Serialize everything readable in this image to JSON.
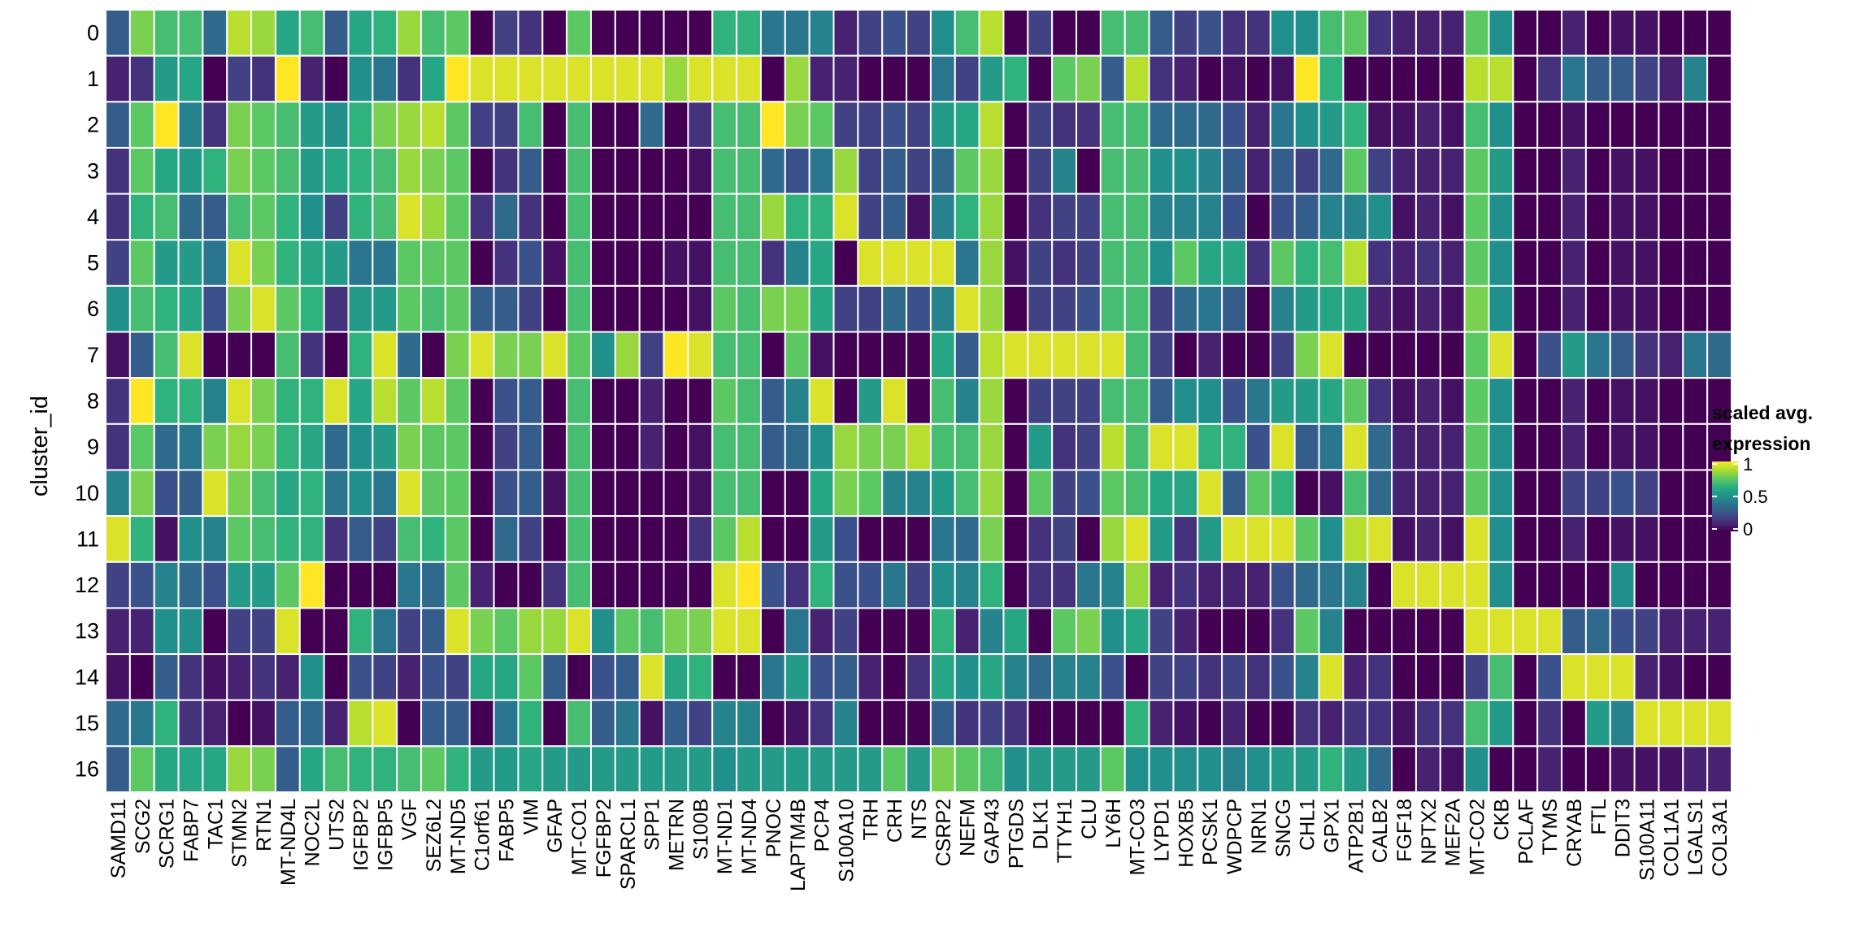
{
  "chart_data": {
    "type": "heatmap",
    "title": "",
    "xlabel": "",
    "ylabel": "cluster_id",
    "rows": [
      "0",
      "1",
      "2",
      "3",
      "4",
      "5",
      "6",
      "7",
      "8",
      "9",
      "10",
      "11",
      "12",
      "13",
      "14",
      "15",
      "16"
    ],
    "columns": [
      "SAMD11",
      "SCG2",
      "SCRG1",
      "FABP7",
      "TAC1",
      "STMN2",
      "RTN1",
      "MT-ND4L",
      "NOC2L",
      "UTS2",
      "IGFBP2",
      "IGFBP5",
      "VGF",
      "SEZ6L2",
      "MT-ND5",
      "C1orf61",
      "FABP5",
      "VIM",
      "GFAP",
      "MT-CO1",
      "FGFBP2",
      "SPARCL1",
      "SPP1",
      "METRN",
      "S100B",
      "MT-ND1",
      "MT-ND4",
      "PNOC",
      "LAPTM4B",
      "PCP4",
      "S100A10",
      "TRH",
      "CRH",
      "NTS",
      "CSRP2",
      "NEFM",
      "GAP43",
      "PTGDS",
      "DLK1",
      "TTYH1",
      "CLU",
      "LY6H",
      "MT-CO3",
      "LYPD1",
      "HOXB5",
      "PCSK1",
      "WDPCP",
      "NRN1",
      "SNCG",
      "CHL1",
      "GPX1",
      "ATP2B1",
      "CALB2",
      "FGF18",
      "NPTX2",
      "MEF2A",
      "MT-CO2",
      "CKB",
      "PCLAF",
      "TYMS",
      "CRYAB",
      "FTL",
      "DDIT3",
      "S100A11",
      "COL1A1",
      "LGALS1",
      "COL3A1"
    ],
    "values": [
      [
        0.3,
        0.8,
        0.7,
        0.7,
        0.35,
        0.9,
        0.85,
        0.6,
        0.7,
        0.3,
        0.6,
        0.65,
        0.85,
        0.7,
        0.75,
        0.0,
        0.2,
        0.15,
        0.0,
        0.75,
        0.0,
        0.0,
        0.0,
        0.0,
        0.0,
        0.65,
        0.65,
        0.4,
        0.4,
        0.45,
        0.1,
        0.2,
        0.25,
        0.2,
        0.5,
        0.7,
        0.9,
        0.0,
        0.2,
        0.0,
        0.0,
        0.7,
        0.7,
        0.3,
        0.2,
        0.25,
        0.15,
        0.15,
        0.5,
        0.5,
        0.7,
        0.75,
        0.15,
        0.1,
        0.1,
        0.1,
        0.75,
        0.5,
        0.0,
        0.0,
        0.1,
        0.0,
        0.05,
        0.05,
        0.0,
        0.0,
        0.0
      ],
      [
        0.1,
        0.15,
        0.55,
        0.6,
        0.0,
        0.2,
        0.15,
        1.0,
        0.1,
        0.0,
        0.5,
        0.4,
        0.15,
        0.6,
        1.0,
        0.95,
        0.95,
        0.95,
        0.95,
        0.95,
        0.95,
        0.95,
        0.95,
        0.85,
        0.95,
        0.95,
        0.95,
        0.0,
        0.85,
        0.1,
        0.1,
        0.0,
        0.0,
        0.0,
        0.4,
        0.2,
        0.55,
        0.65,
        0.0,
        0.75,
        0.8,
        0.3,
        0.9,
        0.15,
        0.1,
        0.0,
        0.05,
        0.0,
        0.05,
        1.0,
        0.65,
        0.0,
        0.0,
        0.0,
        0.0,
        0.0,
        0.9,
        0.9,
        0.0,
        0.15,
        0.4,
        0.3,
        0.3,
        0.2,
        0.1,
        0.45,
        0.0
      ],
      [
        0.3,
        0.75,
        1.0,
        0.45,
        0.15,
        0.8,
        0.75,
        0.7,
        0.55,
        0.5,
        0.65,
        0.8,
        0.85,
        0.9,
        0.75,
        0.2,
        0.2,
        0.7,
        0.0,
        0.7,
        0.0,
        0.0,
        0.35,
        0.0,
        0.15,
        0.7,
        0.7,
        1.0,
        0.8,
        0.75,
        0.2,
        0.2,
        0.25,
        0.2,
        0.55,
        0.6,
        0.9,
        0.0,
        0.2,
        0.15,
        0.15,
        0.7,
        0.7,
        0.35,
        0.35,
        0.35,
        0.25,
        0.1,
        0.4,
        0.5,
        0.55,
        0.65,
        0.05,
        0.05,
        0.1,
        0.05,
        0.7,
        0.5,
        0.0,
        0.0,
        0.05,
        0.0,
        0.0,
        0.0,
        0.0,
        0.0,
        0.0
      ],
      [
        0.15,
        0.75,
        0.6,
        0.55,
        0.65,
        0.8,
        0.75,
        0.7,
        0.55,
        0.6,
        0.65,
        0.7,
        0.85,
        0.8,
        0.75,
        0.0,
        0.15,
        0.3,
        0.0,
        0.7,
        0.0,
        0.0,
        0.0,
        0.0,
        0.05,
        0.7,
        0.7,
        0.35,
        0.25,
        0.4,
        0.85,
        0.2,
        0.3,
        0.2,
        0.35,
        0.75,
        0.85,
        0.0,
        0.2,
        0.45,
        0.0,
        0.7,
        0.7,
        0.5,
        0.5,
        0.45,
        0.3,
        0.1,
        0.3,
        0.2,
        0.35,
        0.75,
        0.2,
        0.1,
        0.1,
        0.1,
        0.75,
        0.55,
        0.0,
        0.0,
        0.1,
        0.0,
        0.05,
        0.05,
        0.0,
        0.0,
        0.0
      ],
      [
        0.15,
        0.65,
        0.7,
        0.35,
        0.3,
        0.7,
        0.75,
        0.65,
        0.5,
        0.2,
        0.65,
        0.7,
        0.95,
        0.85,
        0.75,
        0.15,
        0.35,
        0.15,
        0.0,
        0.7,
        0.0,
        0.0,
        0.0,
        0.0,
        0.0,
        0.7,
        0.7,
        0.85,
        0.65,
        0.65,
        0.95,
        0.2,
        0.3,
        0.05,
        0.45,
        0.65,
        0.85,
        0.0,
        0.15,
        0.2,
        0.2,
        0.7,
        0.7,
        0.45,
        0.45,
        0.45,
        0.25,
        0.0,
        0.25,
        0.3,
        0.45,
        0.45,
        0.5,
        0.05,
        0.1,
        0.05,
        0.75,
        0.5,
        0.0,
        0.0,
        0.1,
        0.0,
        0.05,
        0.05,
        0.0,
        0.0,
        0.0
      ],
      [
        0.2,
        0.75,
        0.55,
        0.55,
        0.4,
        0.95,
        0.8,
        0.65,
        0.6,
        0.55,
        0.4,
        0.4,
        0.75,
        0.75,
        0.75,
        0.0,
        0.15,
        0.25,
        0.05,
        0.7,
        0.0,
        0.0,
        0.0,
        0.05,
        0.05,
        0.7,
        0.7,
        0.15,
        0.45,
        0.6,
        0.0,
        0.95,
        0.95,
        0.95,
        0.95,
        0.4,
        0.85,
        0.05,
        0.2,
        0.15,
        0.2,
        0.7,
        0.7,
        0.5,
        0.75,
        0.6,
        0.6,
        0.15,
        0.75,
        0.65,
        0.7,
        0.9,
        0.15,
        0.1,
        0.15,
        0.1,
        0.75,
        0.5,
        0.0,
        0.0,
        0.1,
        0.0,
        0.05,
        0.05,
        0.0,
        0.0,
        0.0
      ],
      [
        0.5,
        0.7,
        0.65,
        0.6,
        0.25,
        0.8,
        0.95,
        0.75,
        0.65,
        0.15,
        0.55,
        0.55,
        0.75,
        0.7,
        0.75,
        0.3,
        0.3,
        0.2,
        0.0,
        0.7,
        0.0,
        0.0,
        0.0,
        0.0,
        0.05,
        0.75,
        0.7,
        0.8,
        0.8,
        0.6,
        0.2,
        0.2,
        0.35,
        0.25,
        0.45,
        0.95,
        0.85,
        0.0,
        0.2,
        0.2,
        0.25,
        0.7,
        0.7,
        0.2,
        0.35,
        0.4,
        0.3,
        0.0,
        0.45,
        0.55,
        0.6,
        0.6,
        0.1,
        0.05,
        0.1,
        0.05,
        0.8,
        0.5,
        0.0,
        0.0,
        0.1,
        0.0,
        0.05,
        0.05,
        0.0,
        0.0,
        0.0
      ],
      [
        0.05,
        0.3,
        0.7,
        0.95,
        0.0,
        0.0,
        0.0,
        0.7,
        0.15,
        0.0,
        0.65,
        0.95,
        0.35,
        0.0,
        0.8,
        0.95,
        0.8,
        0.8,
        0.95,
        0.75,
        0.5,
        0.85,
        0.2,
        1.0,
        0.95,
        0.7,
        0.7,
        0.0,
        0.75,
        0.05,
        0.0,
        0.0,
        0.0,
        0.0,
        0.6,
        0.3,
        0.9,
        0.95,
        0.95,
        0.95,
        0.95,
        0.95,
        0.7,
        0.2,
        0.0,
        0.1,
        0.0,
        0.0,
        0.2,
        0.8,
        0.95,
        0.0,
        0.0,
        0.0,
        0.0,
        0.0,
        0.75,
        0.95,
        0.0,
        0.25,
        0.55,
        0.4,
        0.3,
        0.15,
        0.1,
        0.4,
        0.35
      ],
      [
        0.15,
        1.0,
        0.65,
        0.65,
        0.45,
        0.95,
        0.8,
        0.65,
        0.65,
        0.95,
        0.6,
        0.9,
        0.75,
        0.9,
        0.75,
        0.0,
        0.25,
        0.3,
        0.0,
        0.7,
        0.0,
        0.0,
        0.1,
        0.0,
        0.0,
        0.75,
        0.7,
        0.3,
        0.45,
        0.95,
        0.0,
        0.55,
        0.95,
        0.0,
        0.7,
        0.45,
        0.85,
        0.0,
        0.2,
        0.2,
        0.2,
        0.7,
        0.7,
        0.3,
        0.5,
        0.5,
        0.25,
        0.4,
        0.55,
        0.55,
        0.6,
        0.75,
        0.15,
        0.05,
        0.1,
        0.05,
        0.75,
        0.5,
        0.0,
        0.0,
        0.1,
        0.0,
        0.05,
        0.05,
        0.0,
        0.0,
        0.0
      ],
      [
        0.15,
        0.75,
        0.35,
        0.4,
        0.8,
        0.85,
        0.8,
        0.65,
        0.6,
        0.35,
        0.5,
        0.55,
        0.8,
        0.75,
        0.75,
        0.0,
        0.2,
        0.3,
        0.0,
        0.7,
        0.0,
        0.0,
        0.1,
        0.0,
        0.05,
        0.7,
        0.7,
        0.3,
        0.35,
        0.5,
        0.85,
        0.8,
        0.8,
        0.9,
        0.7,
        0.7,
        0.85,
        0.0,
        0.55,
        0.15,
        0.2,
        0.9,
        0.7,
        0.95,
        0.95,
        0.65,
        0.65,
        0.25,
        0.95,
        0.3,
        0.4,
        0.95,
        0.35,
        0.1,
        0.1,
        0.1,
        0.75,
        0.5,
        0.0,
        0.0,
        0.1,
        0.0,
        0.05,
        0.05,
        0.0,
        0.0,
        0.0
      ],
      [
        0.45,
        0.8,
        0.25,
        0.3,
        0.95,
        0.8,
        0.7,
        0.6,
        0.65,
        0.4,
        0.5,
        0.4,
        0.95,
        0.75,
        0.75,
        0.0,
        0.25,
        0.3,
        0.05,
        0.7,
        0.0,
        0.0,
        0.0,
        0.0,
        0.05,
        0.7,
        0.7,
        0.0,
        0.0,
        0.6,
        0.8,
        0.75,
        0.45,
        0.45,
        0.55,
        0.7,
        0.85,
        0.0,
        0.75,
        0.2,
        0.25,
        0.75,
        0.7,
        0.6,
        0.6,
        0.95,
        0.3,
        0.75,
        0.65,
        0.0,
        0.05,
        0.7,
        0.35,
        0.1,
        0.1,
        0.1,
        0.75,
        0.5,
        0.0,
        0.0,
        0.2,
        0.2,
        0.25,
        0.2,
        0.0,
        0.0,
        0.0
      ],
      [
        0.95,
        0.65,
        0.05,
        0.5,
        0.45,
        0.75,
        0.7,
        0.65,
        0.65,
        0.15,
        0.3,
        0.2,
        0.7,
        0.65,
        0.75,
        0.0,
        0.35,
        0.2,
        0.0,
        0.7,
        0.0,
        0.0,
        0.0,
        0.0,
        0.15,
        0.75,
        0.9,
        0.0,
        0.0,
        0.55,
        0.25,
        0.0,
        0.0,
        0.0,
        0.4,
        0.35,
        0.8,
        0.0,
        0.15,
        0.2,
        0.0,
        0.85,
        0.95,
        0.55,
        0.15,
        0.55,
        0.95,
        0.95,
        0.95,
        0.75,
        0.5,
        0.9,
        0.95,
        0.05,
        0.1,
        0.05,
        0.95,
        0.5,
        0.0,
        0.0,
        0.1,
        0.0,
        0.05,
        0.05,
        0.0,
        0.0,
        0.0
      ],
      [
        0.2,
        0.25,
        0.45,
        0.35,
        0.25,
        0.55,
        0.55,
        0.75,
        1.0,
        0.0,
        0.0,
        0.0,
        0.4,
        0.35,
        0.75,
        0.1,
        0.0,
        0.0,
        0.15,
        0.7,
        0.0,
        0.0,
        0.0,
        0.0,
        0.0,
        0.95,
        1.0,
        0.25,
        0.15,
        0.65,
        0.25,
        0.25,
        0.4,
        0.2,
        0.5,
        0.45,
        0.65,
        0.0,
        0.15,
        0.15,
        0.4,
        0.45,
        0.85,
        0.1,
        0.15,
        0.1,
        0.1,
        0.1,
        0.25,
        0.35,
        0.4,
        0.45,
        0.0,
        0.95,
        0.95,
        0.95,
        0.95,
        0.5,
        0.0,
        0.0,
        0.0,
        0.0,
        0.5,
        0.0,
        0.0,
        0.0,
        0.0
      ],
      [
        0.1,
        0.1,
        0.5,
        0.5,
        0.0,
        0.2,
        0.2,
        0.95,
        0.0,
        0.0,
        0.65,
        0.4,
        0.2,
        0.3,
        0.95,
        0.8,
        0.75,
        0.85,
        0.85,
        0.95,
        0.5,
        0.75,
        0.7,
        0.8,
        0.8,
        0.95,
        0.95,
        0.0,
        0.4,
        0.1,
        0.2,
        0.0,
        0.0,
        0.0,
        0.65,
        0.1,
        0.45,
        0.6,
        0.0,
        0.75,
        0.8,
        0.5,
        0.6,
        0.2,
        0.1,
        0.0,
        0.0,
        0.0,
        0.15,
        0.75,
        0.45,
        0.0,
        0.0,
        0.0,
        0.0,
        0.0,
        0.95,
        0.95,
        0.95,
        0.95,
        0.3,
        0.35,
        0.25,
        0.2,
        0.1,
        0.1,
        0.1
      ],
      [
        0.05,
        0.0,
        0.3,
        0.15,
        0.05,
        0.1,
        0.15,
        0.1,
        0.5,
        0.0,
        0.25,
        0.2,
        0.1,
        0.25,
        0.2,
        0.6,
        0.6,
        0.75,
        0.3,
        0.0,
        0.25,
        0.3,
        0.95,
        0.6,
        0.65,
        0.0,
        0.0,
        0.4,
        0.55,
        0.25,
        0.3,
        0.1,
        0.0,
        0.15,
        0.6,
        0.5,
        0.6,
        0.45,
        0.35,
        0.45,
        0.45,
        0.25,
        0.0,
        0.2,
        0.2,
        0.15,
        0.2,
        0.15,
        0.25,
        0.45,
        0.95,
        0.1,
        0.15,
        0.0,
        0.0,
        0.0,
        0.2,
        0.7,
        0.0,
        0.25,
        0.95,
        0.95,
        0.95,
        0.1,
        0.05,
        0.0,
        0.0
      ],
      [
        0.35,
        0.4,
        0.65,
        0.15,
        0.1,
        0.0,
        0.05,
        0.3,
        0.35,
        0.1,
        0.9,
        0.95,
        0.0,
        0.3,
        0.3,
        0.0,
        0.4,
        0.65,
        0.0,
        0.7,
        0.3,
        0.4,
        0.05,
        0.3,
        0.2,
        0.45,
        0.45,
        0.0,
        0.05,
        0.15,
        0.45,
        0.0,
        0.0,
        0.0,
        0.3,
        0.15,
        0.2,
        0.15,
        0.0,
        0.0,
        0.0,
        0.0,
        0.65,
        0.1,
        0.05,
        0.0,
        0.1,
        0.0,
        0.0,
        0.15,
        0.1,
        0.15,
        0.15,
        0.05,
        0.15,
        0.15,
        0.7,
        0.55,
        0.0,
        0.15,
        0.0,
        0.55,
        0.45,
        0.95,
        0.95,
        0.95,
        0.95
      ],
      [
        0.3,
        0.75,
        0.6,
        0.6,
        0.6,
        0.85,
        0.8,
        0.3,
        0.6,
        0.7,
        0.65,
        0.65,
        0.7,
        0.75,
        0.65,
        0.55,
        0.55,
        0.6,
        0.55,
        0.55,
        0.55,
        0.55,
        0.55,
        0.55,
        0.55,
        0.5,
        0.55,
        0.55,
        0.55,
        0.55,
        0.55,
        0.55,
        0.75,
        0.55,
        0.8,
        0.75,
        0.7,
        0.5,
        0.55,
        0.55,
        0.55,
        0.75,
        0.5,
        0.5,
        0.5,
        0.5,
        0.45,
        0.5,
        0.55,
        0.55,
        0.65,
        0.55,
        0.35,
        0.0,
        0.1,
        0.05,
        0.5,
        0.0,
        0.0,
        0.1,
        0.0,
        0.0,
        0.05,
        0.05,
        0.05,
        0.1,
        0.1
      ]
    ],
    "colorscale": "viridis",
    "zlim": [
      0,
      1
    ],
    "grid": true,
    "legend": {
      "title_line1": "scaled avg.",
      "title_line2": "expression",
      "ticks": [
        "1",
        "0.5",
        "0"
      ],
      "position": "right"
    }
  }
}
